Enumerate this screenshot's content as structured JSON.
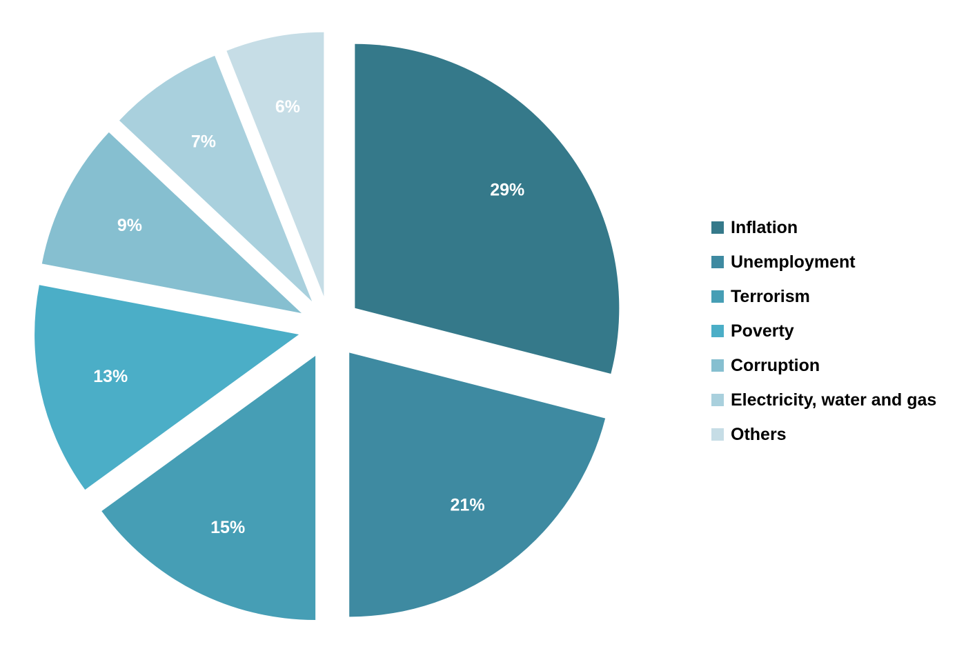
{
  "chart_data": {
    "type": "pie",
    "title": "",
    "categories": [
      "Inflation",
      "Unemployment",
      "Terrorism",
      "Poverty",
      "Corruption",
      "Electricity, water and gas",
      "Others"
    ],
    "values": [
      29,
      21,
      15,
      13,
      9,
      7,
      6
    ],
    "data_labels": [
      "29%",
      "21%",
      "15%",
      "13%",
      "9%",
      "7%",
      "6%"
    ],
    "colors": [
      "#35798a",
      "#3e8aa1",
      "#469eb5",
      "#4baec7",
      "#86bfd0",
      "#a9d0dd",
      "#c6dde6"
    ],
    "exploded": true,
    "legend_position": "right",
    "label_color": "#ffffff"
  }
}
